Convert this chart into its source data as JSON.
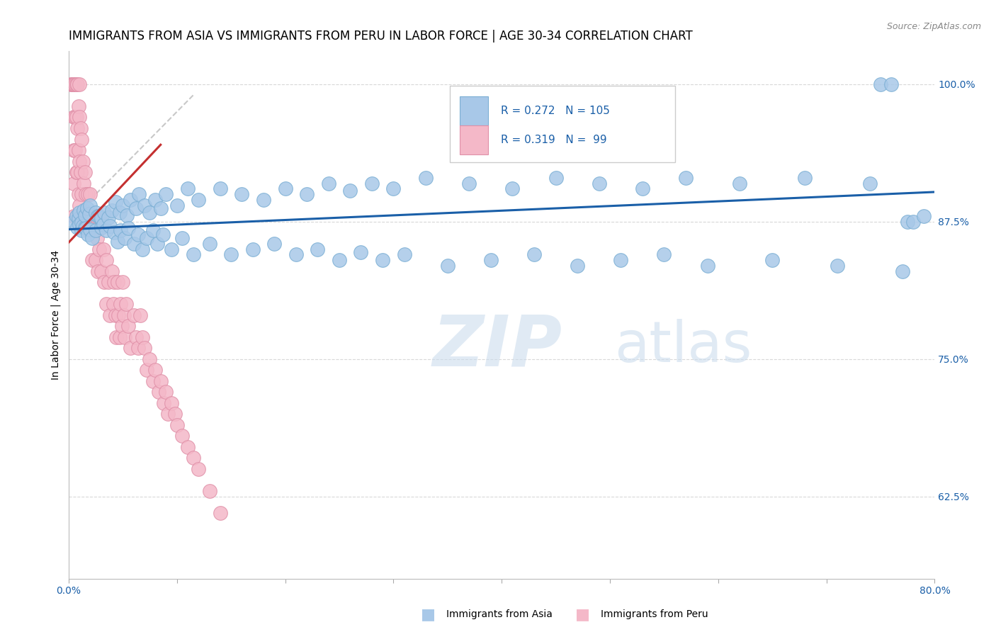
{
  "title": "IMMIGRANTS FROM ASIA VS IMMIGRANTS FROM PERU IN LABOR FORCE | AGE 30-34 CORRELATION CHART",
  "source_text": "Source: ZipAtlas.com",
  "ylabel": "In Labor Force | Age 30-34",
  "xmin": 0.0,
  "xmax": 0.8,
  "ymin": 0.55,
  "ymax": 1.03,
  "yticks": [
    0.625,
    0.75,
    0.875,
    1.0
  ],
  "ytick_labels": [
    "62.5%",
    "75.0%",
    "87.5%",
    "100.0%"
  ],
  "xtick_positions": [
    0.0,
    0.1,
    0.2,
    0.3,
    0.4,
    0.5,
    0.6,
    0.7,
    0.8
  ],
  "xtick_labels": [
    "0.0%",
    "",
    "",
    "",
    "",
    "",
    "",
    "",
    "80.0%"
  ],
  "blue_color": "#a8c8e8",
  "blue_edge_color": "#7bafd4",
  "pink_color": "#f4b8c8",
  "pink_edge_color": "#e090a8",
  "blue_line_color": "#1a5fa8",
  "pink_line_color": "#c43030",
  "diag_color": "#c8c8c8",
  "grid_color": "#d8d8d8",
  "legend_text_color": "#1a5fa8",
  "R_blue": 0.272,
  "N_blue": 105,
  "R_pink": 0.319,
  "N_pink": 99,
  "watermark_zip": "ZIP",
  "watermark_atlas": "atlas",
  "title_fontsize": 12,
  "axis_label_fontsize": 10,
  "tick_fontsize": 10,
  "blue_trend": [
    0.0,
    0.868,
    0.8,
    0.902
  ],
  "pink_trend": [
    0.0,
    0.856,
    0.085,
    0.945
  ],
  "diag_trend": [
    0.0,
    0.875,
    0.115,
    0.99
  ],
  "blue_x": [
    0.005,
    0.007,
    0.008,
    0.009,
    0.01,
    0.01,
    0.012,
    0.012,
    0.013,
    0.014,
    0.015,
    0.015,
    0.016,
    0.017,
    0.018,
    0.019,
    0.02,
    0.02,
    0.022,
    0.025,
    0.025,
    0.027,
    0.028,
    0.03,
    0.03,
    0.032,
    0.033,
    0.035,
    0.037,
    0.038,
    0.04,
    0.042,
    0.043,
    0.045,
    0.047,
    0.048,
    0.05,
    0.052,
    0.054,
    0.055,
    0.057,
    0.06,
    0.062,
    0.064,
    0.065,
    0.068,
    0.07,
    0.072,
    0.075,
    0.078,
    0.08,
    0.082,
    0.085,
    0.087,
    0.09,
    0.095,
    0.1,
    0.105,
    0.11,
    0.115,
    0.12,
    0.13,
    0.14,
    0.15,
    0.16,
    0.17,
    0.18,
    0.19,
    0.2,
    0.21,
    0.22,
    0.23,
    0.24,
    0.25,
    0.26,
    0.27,
    0.28,
    0.29,
    0.3,
    0.31,
    0.33,
    0.35,
    0.37,
    0.39,
    0.41,
    0.43,
    0.45,
    0.47,
    0.49,
    0.51,
    0.53,
    0.55,
    0.57,
    0.59,
    0.62,
    0.65,
    0.68,
    0.71,
    0.74,
    0.75,
    0.76,
    0.77,
    0.775,
    0.78,
    0.79
  ],
  "blue_y": [
    0.875,
    0.875,
    0.875,
    0.875,
    0.875,
    0.875,
    0.875,
    0.87,
    0.875,
    0.875,
    0.88,
    0.875,
    0.875,
    0.875,
    0.875,
    0.875,
    0.875,
    0.875,
    0.875,
    0.875,
    0.875,
    0.88,
    0.875,
    0.875,
    0.875,
    0.875,
    0.875,
    0.875,
    0.875,
    0.875,
    0.875,
    0.875,
    0.875,
    0.875,
    0.875,
    0.875,
    0.875,
    0.875,
    0.875,
    0.875,
    0.875,
    0.875,
    0.875,
    0.875,
    0.875,
    0.875,
    0.875,
    0.875,
    0.875,
    0.875,
    0.875,
    0.875,
    0.875,
    0.875,
    0.875,
    0.875,
    0.875,
    0.875,
    0.875,
    0.875,
    0.875,
    0.875,
    0.875,
    0.875,
    0.875,
    0.875,
    0.875,
    0.875,
    0.875,
    0.875,
    0.875,
    0.875,
    0.875,
    0.875,
    0.875,
    0.875,
    0.875,
    0.875,
    0.875,
    0.875,
    0.875,
    0.875,
    0.875,
    0.875,
    0.875,
    0.875,
    0.875,
    0.875,
    0.875,
    0.875,
    0.875,
    0.875,
    0.875,
    0.875,
    0.875,
    0.875,
    0.875,
    0.875,
    0.875,
    1.0,
    1.0,
    0.83,
    0.875,
    0.875,
    0.88
  ],
  "blue_y_noise": [
    0.0,
    0.005,
    -0.005,
    0.003,
    -0.003,
    0.008,
    -0.008,
    0.004,
    -0.004,
    0.01,
    -0.01,
    0.006,
    -0.006,
    0.012,
    -0.012,
    0.007,
    -0.007,
    0.015,
    -0.015,
    0.008,
    -0.008,
    0.0,
    0.005,
    -0.005,
    0.003,
    -0.003,
    0.008,
    -0.008,
    0.004,
    -0.004,
    0.01,
    -0.01,
    0.018,
    -0.018,
    0.008,
    -0.008,
    0.015,
    -0.015,
    0.006,
    -0.006,
    0.02,
    -0.02,
    0.012,
    -0.012,
    0.025,
    -0.025,
    0.015,
    -0.015,
    0.008,
    -0.008,
    0.02,
    -0.02,
    0.012,
    -0.012,
    0.025,
    -0.025,
    0.015,
    -0.015,
    0.03,
    -0.03,
    0.02,
    -0.02,
    0.03,
    -0.03,
    0.025,
    -0.025,
    0.02,
    -0.02,
    0.03,
    -0.03,
    0.025,
    -0.025,
    0.035,
    -0.035,
    0.028,
    -0.028,
    0.035,
    -0.035,
    0.03,
    -0.03,
    0.04,
    -0.04,
    0.035,
    -0.035,
    0.03,
    -0.03,
    0.04,
    -0.04,
    0.035,
    -0.035,
    0.03,
    -0.03,
    0.04,
    -0.04,
    0.035,
    -0.035,
    0.04,
    -0.04,
    0.035,
    0.0,
    0.0,
    0.0,
    0.0,
    0.0,
    0.0
  ],
  "pink_x": [
    0.002,
    0.003,
    0.004,
    0.004,
    0.005,
    0.005,
    0.005,
    0.005,
    0.005,
    0.005,
    0.005,
    0.006,
    0.006,
    0.006,
    0.007,
    0.007,
    0.007,
    0.008,
    0.008,
    0.008,
    0.008,
    0.009,
    0.009,
    0.009,
    0.01,
    0.01,
    0.01,
    0.01,
    0.011,
    0.011,
    0.012,
    0.012,
    0.013,
    0.013,
    0.014,
    0.015,
    0.015,
    0.016,
    0.017,
    0.018,
    0.019,
    0.02,
    0.02,
    0.022,
    0.022,
    0.024,
    0.025,
    0.025,
    0.026,
    0.027,
    0.028,
    0.03,
    0.03,
    0.032,
    0.033,
    0.035,
    0.035,
    0.037,
    0.038,
    0.04,
    0.041,
    0.042,
    0.043,
    0.044,
    0.045,
    0.046,
    0.047,
    0.048,
    0.049,
    0.05,
    0.051,
    0.052,
    0.053,
    0.055,
    0.057,
    0.06,
    0.062,
    0.064,
    0.066,
    0.068,
    0.07,
    0.072,
    0.075,
    0.078,
    0.08,
    0.083,
    0.085,
    0.088,
    0.09,
    0.092,
    0.095,
    0.098,
    0.1,
    0.105,
    0.11,
    0.115,
    0.12,
    0.13,
    0.14
  ],
  "pink_y": [
    1.0,
    1.0,
    1.0,
    1.0,
    1.0,
    1.0,
    1.0,
    0.97,
    0.94,
    0.91,
    0.88,
    1.0,
    0.97,
    0.94,
    1.0,
    0.97,
    0.92,
    1.0,
    0.96,
    0.92,
    0.88,
    0.98,
    0.94,
    0.9,
    1.0,
    0.97,
    0.93,
    0.89,
    0.96,
    0.92,
    0.95,
    0.9,
    0.93,
    0.88,
    0.91,
    0.92,
    0.87,
    0.9,
    0.88,
    0.9,
    0.88,
    0.9,
    0.87,
    0.88,
    0.84,
    0.87,
    0.88,
    0.84,
    0.86,
    0.83,
    0.85,
    0.87,
    0.83,
    0.85,
    0.82,
    0.84,
    0.8,
    0.82,
    0.79,
    0.83,
    0.8,
    0.82,
    0.79,
    0.77,
    0.82,
    0.79,
    0.77,
    0.8,
    0.78,
    0.82,
    0.79,
    0.77,
    0.8,
    0.78,
    0.76,
    0.79,
    0.77,
    0.76,
    0.79,
    0.77,
    0.76,
    0.74,
    0.75,
    0.73,
    0.74,
    0.72,
    0.73,
    0.71,
    0.72,
    0.7,
    0.71,
    0.7,
    0.69,
    0.68,
    0.67,
    0.66,
    0.65,
    0.63,
    0.61
  ]
}
